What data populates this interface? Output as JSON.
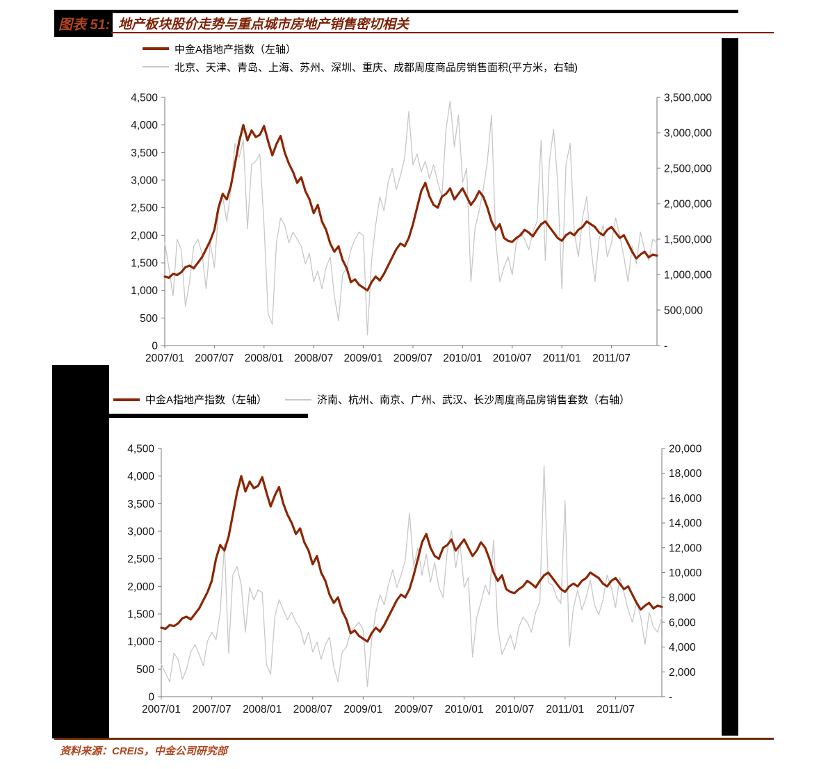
{
  "page": {
    "figure_label": "图表 51:",
    "title": "地产板块股价走势与重点城市房地产销售密切相关",
    "source": "资料来源：CREIS，中金公司研究部",
    "colors": {
      "accent_dark": "#7E2004",
      "accent_bright": "#B0441E",
      "line_red": "#8B2604",
      "line_gray": "#C7C7C7",
      "rule_dark": "#6B2B08"
    }
  },
  "chart_data": [
    {
      "type": "line",
      "legend": [
        {
          "name": "中金A指地产指数（左轴）",
          "color": "#8B2604"
        },
        {
          "name": "北京、天津、青岛、上海、苏州、深圳、重庆、成都周度商品房销售面积(平方米，右轴)",
          "color": "#C7C7C7"
        }
      ],
      "x_ticks": [
        "2007/01",
        "2007/07",
        "2008/01",
        "2008/07",
        "2009/01",
        "2009/07",
        "2010/01",
        "2010/07",
        "2011/01",
        "2011/07"
      ],
      "x_tick_indices": [
        0,
        12,
        24,
        36,
        48,
        60,
        72,
        84,
        96,
        108
      ],
      "left_axis": {
        "min": 0,
        "max": 4500,
        "step": 500,
        "labels": [
          "0",
          "500",
          "1,000",
          "1,500",
          "2,000",
          "2,500",
          "3,000",
          "3,500",
          "4,000",
          "4,500"
        ]
      },
      "right_axis": {
        "min": 0,
        "max": 3500000,
        "step": 500000,
        "labels": [
          "-",
          "500,000",
          "1,000,000",
          "1,500,000",
          "2,000,000",
          "2,500,000",
          "3,000,000",
          "3,500,000"
        ]
      },
      "layout": {
        "pl": 77,
        "pr": 785,
        "pt": 15,
        "pb": 372
      },
      "grid": false,
      "legend_position": "top",
      "series": [
        {
          "name": "北京、天津、青岛、上海、苏州、深圳、重庆、成都周度商品房销售面积(平方米，右轴)",
          "axis": "right",
          "color": "#C7C7C7",
          "width": 1.3,
          "values": [
            1450000,
            1100000,
            700000,
            1500000,
            1350000,
            550000,
            900000,
            1400000,
            1500000,
            1300000,
            800000,
            1450000,
            1100000,
            1900000,
            2100000,
            1750000,
            2200000,
            2850000,
            2650000,
            2900000,
            1650000,
            2550000,
            2600000,
            2700000,
            1700000,
            450000,
            300000,
            1450000,
            1800000,
            1700000,
            1450000,
            1600000,
            1500000,
            1400000,
            1150000,
            1300000,
            900000,
            1050000,
            800000,
            1100000,
            1250000,
            700000,
            350000,
            1000000,
            1100000,
            1350000,
            1500000,
            1600000,
            1550000,
            150000,
            1200000,
            1700000,
            2100000,
            1900000,
            2300000,
            2500000,
            2200000,
            2400000,
            2650000,
            3300000,
            2550000,
            2700000,
            2450000,
            2600000,
            2350000,
            2550000,
            2300000,
            2100000,
            3050000,
            3450000,
            2800000,
            3250000,
            2300000,
            2500000,
            900000,
            1650000,
            1900000,
            2200000,
            2600000,
            3250000,
            1500000,
            900000,
            1100000,
            1250000,
            1000000,
            1450000,
            1600000,
            1500000,
            1350000,
            1600000,
            1750000,
            2900000,
            1200000,
            2600000,
            3050000,
            2300000,
            800000,
            2550000,
            2850000,
            1600000,
            1250000,
            1800000,
            2100000,
            1400000,
            900000,
            1500000,
            1700000,
            1250000,
            1450000,
            1800000,
            1550000,
            1250000,
            900000,
            1400000,
            1150000,
            1600000,
            1350000,
            1200000,
            1500000,
            1450000
          ]
        },
        {
          "name": "中金A指地产指数（左轴）",
          "axis": "left",
          "color": "#8B2604",
          "width": 3.2,
          "values": [
            1250,
            1230,
            1300,
            1280,
            1330,
            1420,
            1450,
            1400,
            1500,
            1600,
            1750,
            1900,
            2100,
            2500,
            2750,
            2650,
            2900,
            3300,
            3700,
            4000,
            3720,
            3900,
            3780,
            3820,
            3980,
            3700,
            3450,
            3650,
            3800,
            3500,
            3300,
            3150,
            2950,
            3050,
            2800,
            2650,
            2400,
            2550,
            2250,
            2100,
            1850,
            1700,
            1800,
            1550,
            1400,
            1150,
            1200,
            1100,
            1050,
            1000,
            1150,
            1250,
            1180,
            1300,
            1450,
            1600,
            1750,
            1850,
            1800,
            1950,
            2200,
            2500,
            2800,
            2950,
            2700,
            2550,
            2500,
            2700,
            2750,
            2850,
            2650,
            2750,
            2850,
            2700,
            2550,
            2650,
            2800,
            2700,
            2500,
            2250,
            2100,
            2200,
            1950,
            1900,
            1880,
            1950,
            2000,
            2100,
            2050,
            1980,
            2100,
            2200,
            2250,
            2150,
            2050,
            1950,
            1900,
            2000,
            2050,
            2000,
            2100,
            2150,
            2250,
            2200,
            2150,
            2050,
            2000,
            2100,
            2150,
            2050,
            1950,
            2000,
            1850,
            1700,
            1580,
            1650,
            1700,
            1600,
            1650,
            1630
          ]
        }
      ]
    },
    {
      "type": "line",
      "legend": [
        {
          "name": "中金A指地产指数（左轴）",
          "color": "#8B2604"
        },
        {
          "name": "济南、杭州、南京、广州、武汉、长沙周度商品房销售套数（右轴）",
          "color": "#C7C7C7"
        }
      ],
      "x_ticks": [
        "2007/01",
        "2007/07",
        "2008/01",
        "2008/07",
        "2009/01",
        "2009/07",
        "2010/01",
        "2010/07",
        "2011/01",
        "2011/07"
      ],
      "x_tick_indices": [
        0,
        12,
        24,
        36,
        48,
        60,
        72,
        84,
        96,
        108
      ],
      "left_axis": {
        "min": 0,
        "max": 4500,
        "step": 500,
        "labels": [
          "0",
          "500",
          "1,000",
          "1,500",
          "2,000",
          "2,500",
          "3,000",
          "3,500",
          "4,000",
          "4,500"
        ]
      },
      "right_axis": {
        "min": 0,
        "max": 20000,
        "step": 2000,
        "labels": [
          "-",
          "2,000",
          "4,000",
          "6,000",
          "8,000",
          "10,000",
          "12,000",
          "14,000",
          "16,000",
          "18,000",
          "20,000"
        ]
      },
      "layout": {
        "pl": 72,
        "pr": 792,
        "pt": 15,
        "pb": 372
      },
      "grid": false,
      "legend_position": "top",
      "series": [
        {
          "name": "济南、杭州、南京、广州、武汉、长沙周度商品房销售套数（右轴）",
          "axis": "right",
          "color": "#C7C7C7",
          "width": 1.3,
          "values": [
            2600,
            1900,
            1200,
            3500,
            3000,
            1400,
            2200,
            3600,
            4200,
            3400,
            2500,
            4500,
            5200,
            4600,
            6800,
            12300,
            3500,
            9800,
            10500,
            9000,
            5200,
            8800,
            7800,
            8600,
            8400,
            2600,
            1800,
            6500,
            7800,
            7000,
            6200,
            6800,
            6000,
            5500,
            4200,
            5200,
            3600,
            4400,
            3000,
            4200,
            4800,
            2400,
            1200,
            3600,
            4000,
            5200,
            5600,
            6000,
            5400,
            800,
            4500,
            6800,
            8200,
            7400,
            9000,
            10200,
            8800,
            9800,
            11000,
            14800,
            10500,
            12000,
            9800,
            11500,
            9200,
            10800,
            8800,
            8000,
            11800,
            13400,
            10400,
            12400,
            8800,
            9600,
            3200,
            6400,
            7600,
            9000,
            8200,
            12600,
            5600,
            3400,
            4200,
            5000,
            3800,
            5600,
            6400,
            6000,
            5200,
            6800,
            7600,
            18600,
            9200,
            9000,
            8000,
            7500,
            15800,
            4000,
            7200,
            8600,
            7000,
            8000,
            9400,
            7400,
            6600,
            7800,
            9800,
            8800,
            7200,
            9600,
            8400,
            7000,
            6000,
            7600,
            6400,
            4200,
            6800,
            5600,
            5200,
            6400
          ]
        },
        {
          "name": "中金A指地产指数（左轴）",
          "axis": "left",
          "color": "#8B2604",
          "width": 3.2,
          "values": [
            1250,
            1230,
            1300,
            1280,
            1330,
            1420,
            1450,
            1400,
            1500,
            1600,
            1750,
            1900,
            2100,
            2500,
            2750,
            2650,
            2900,
            3300,
            3700,
            4000,
            3720,
            3900,
            3780,
            3820,
            3980,
            3700,
            3450,
            3650,
            3800,
            3500,
            3300,
            3150,
            2950,
            3050,
            2800,
            2650,
            2400,
            2550,
            2250,
            2100,
            1850,
            1700,
            1800,
            1550,
            1400,
            1150,
            1200,
            1100,
            1050,
            1000,
            1150,
            1250,
            1180,
            1300,
            1450,
            1600,
            1750,
            1850,
            1800,
            1950,
            2200,
            2500,
            2800,
            2950,
            2700,
            2550,
            2500,
            2700,
            2750,
            2850,
            2650,
            2750,
            2850,
            2700,
            2550,
            2650,
            2800,
            2700,
            2500,
            2250,
            2100,
            2200,
            1950,
            1900,
            1880,
            1950,
            2000,
            2100,
            2050,
            1980,
            2100,
            2200,
            2250,
            2150,
            2050,
            1950,
            1900,
            2000,
            2050,
            2000,
            2100,
            2150,
            2250,
            2200,
            2150,
            2050,
            2000,
            2100,
            2150,
            2050,
            1950,
            2000,
            1850,
            1700,
            1580,
            1650,
            1700,
            1600,
            1650,
            1630
          ]
        }
      ]
    }
  ]
}
